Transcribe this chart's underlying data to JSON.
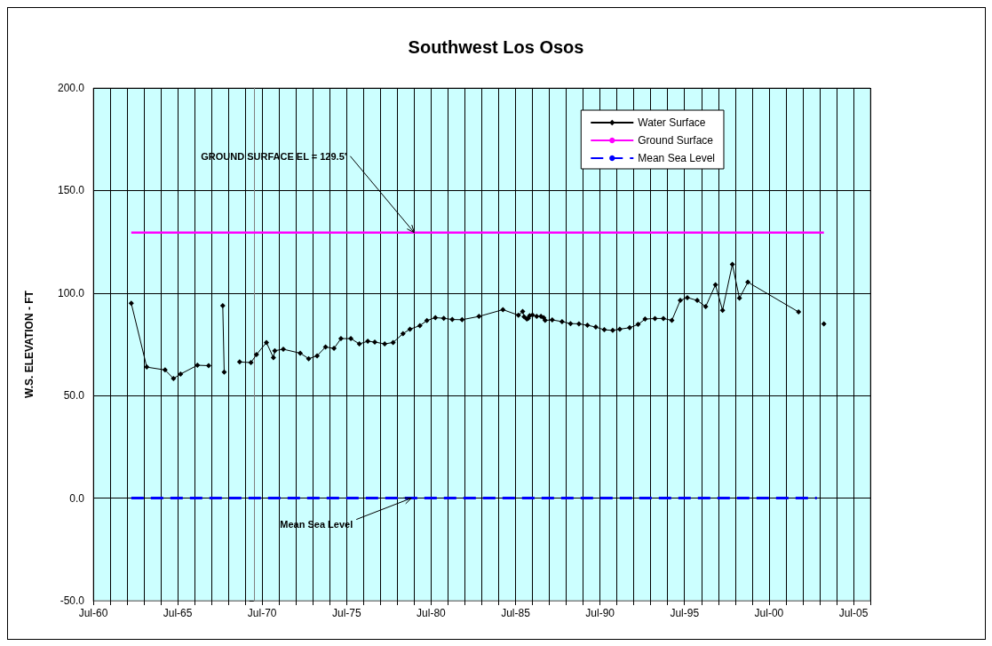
{
  "chart_data": {
    "type": "line",
    "title": "Southwest Los Osos",
    "ylabel": "W.S. ELEVATION - FT",
    "xlim": [
      "1960-07",
      "2006-07"
    ],
    "ylim": [
      -50,
      200
    ],
    "xticks": [
      {
        "value": "1960-07",
        "label": "Jul-60"
      },
      {
        "value": "1961-07",
        "label": null
      },
      {
        "value": "1962-07",
        "label": null
      },
      {
        "value": "1963-07",
        "label": null
      },
      {
        "value": "1964-07",
        "label": null
      },
      {
        "value": "1965-07",
        "label": "Jul-65"
      },
      {
        "value": "1966-07",
        "label": null
      },
      {
        "value": "1967-07",
        "label": null
      },
      {
        "value": "1968-07",
        "label": null
      },
      {
        "value": "1969-07",
        "label": null
      },
      {
        "value": "1970-07",
        "label": "Jul-70"
      },
      {
        "value": "1971-07",
        "label": null
      },
      {
        "value": "1972-07",
        "label": null
      },
      {
        "value": "1973-07",
        "label": null
      },
      {
        "value": "1974-07",
        "label": null
      },
      {
        "value": "1975-07",
        "label": "Jul-75"
      },
      {
        "value": "1976-07",
        "label": null
      },
      {
        "value": "1977-07",
        "label": null
      },
      {
        "value": "1978-07",
        "label": null
      },
      {
        "value": "1979-07",
        "label": null
      },
      {
        "value": "1980-07",
        "label": "Jul-80"
      },
      {
        "value": "1981-07",
        "label": null
      },
      {
        "value": "1982-07",
        "label": null
      },
      {
        "value": "1983-07",
        "label": null
      },
      {
        "value": "1984-07",
        "label": null
      },
      {
        "value": "1985-07",
        "label": "Jul-85"
      },
      {
        "value": "1986-07",
        "label": null
      },
      {
        "value": "1987-07",
        "label": null
      },
      {
        "value": "1988-07",
        "label": null
      },
      {
        "value": "1989-07",
        "label": null
      },
      {
        "value": "1990-07",
        "label": "Jul-90"
      },
      {
        "value": "1991-07",
        "label": null
      },
      {
        "value": "1992-07",
        "label": null
      },
      {
        "value": "1993-07",
        "label": null
      },
      {
        "value": "1994-07",
        "label": null
      },
      {
        "value": "1995-07",
        "label": "Jul-95"
      },
      {
        "value": "1996-07",
        "label": null
      },
      {
        "value": "1997-07",
        "label": null
      },
      {
        "value": "1998-07",
        "label": null
      },
      {
        "value": "1999-07",
        "label": null
      },
      {
        "value": "2000-07",
        "label": "Jul-00"
      },
      {
        "value": "2001-07",
        "label": null
      },
      {
        "value": "2002-07",
        "label": null
      },
      {
        "value": "2003-07",
        "label": null
      },
      {
        "value": "2004-07",
        "label": null
      },
      {
        "value": "2005-07",
        "label": "Jul-05"
      },
      {
        "value": "2006-07",
        "label": null
      }
    ],
    "yticks": [
      {
        "value": -50,
        "label": "-50.0"
      },
      {
        "value": 0,
        "label": "0.0"
      },
      {
        "value": 50,
        "label": "50.0"
      },
      {
        "value": 100,
        "label": "100.0"
      },
      {
        "value": 150,
        "label": "150.0"
      },
      {
        "value": 200,
        "label": "200.0"
      }
    ],
    "grid": true,
    "legend": "top right",
    "series": [
      {
        "name": "Water Surface",
        "color": "#000000",
        "marker": "diamond",
        "line_style": "solid",
        "x": [
          "1962-10",
          "1963-09",
          "1964-10",
          "1965-04",
          "1965-09",
          "1966-09",
          "1967-05",
          "1967-10",
          "1968-03",
          "1968-04",
          "1968-09",
          "1969-03",
          "1969-11",
          "1970-03",
          "1970-10",
          "1971-03",
          "1971-04",
          "1971-10",
          "1972-10",
          "1973-04",
          "1973-10",
          "1974-04",
          "1974-10",
          "1975-03",
          "1975-10",
          "1976-04",
          "1976-10",
          "1977-03",
          "1977-10",
          "1978-04",
          "1978-11",
          "1979-04",
          "1979-11",
          "1980-04",
          "1980-10",
          "1981-04",
          "1981-10",
          "1982-05",
          "1983-05",
          "1984-10",
          "1985-09",
          "1985-12",
          "1986-01",
          "1986-03",
          "1986-04",
          "1986-05",
          "1986-07",
          "1986-10",
          "1987-01",
          "1987-03",
          "1987-04",
          "1987-09",
          "1988-04",
          "1988-10",
          "1989-04",
          "1989-10",
          "1990-04",
          "1990-10",
          "1991-04",
          "1991-09",
          "1992-04",
          "1992-10",
          "1993-03",
          "1993-10",
          "1994-04",
          "1994-10",
          "1995-04",
          "1995-09",
          "1996-04",
          "1996-10",
          "1997-05",
          "1997-10",
          "1998-05",
          "1998-10",
          "1999-04",
          "2002-04",
          "2003-01",
          "2003-10"
        ],
        "values": [
          95,
          63.9,
          62.5,
          58.3,
          60.5,
          64.8,
          64.6,
          null,
          93.9,
          61.5,
          null,
          66.4,
          66.1,
          70,
          75.9,
          68.5,
          71.9,
          72.6,
          70.7,
          68,
          69.4,
          73.7,
          73,
          77.8,
          77.8,
          75.2,
          76.5,
          76.1,
          75.2,
          75.9,
          80.2,
          82.4,
          84.1,
          86.6,
          88,
          87.7,
          87.1,
          87,
          88.6,
          91.9,
          89.2,
          91,
          88.4,
          87.4,
          87.7,
          89,
          89.3,
          88.7,
          88.7,
          88,
          86.7,
          86.9,
          86.1,
          85.1,
          85,
          84.3,
          83.4,
          82.1,
          81.8,
          82.4,
          83.1,
          84.7,
          87.3,
          87.6,
          87.6,
          86.7,
          96.4,
          97.8,
          96.4,
          93.4,
          104,
          91.6,
          114,
          97.5,
          105.3,
          90.8,
          null,
          85
        ]
      },
      {
        "name": "Ground Surface",
        "color": "#ff00ff",
        "marker": "none",
        "line_style": "solid",
        "x": [
          "1962-10",
          "2003-10"
        ],
        "values": [
          129.5,
          129.5
        ]
      },
      {
        "name": "Mean Sea Level",
        "color": "#0000ff",
        "marker": "none",
        "line_style": "dashed",
        "x": [
          "1962-10",
          "2003-05"
        ],
        "values": [
          0,
          0
        ]
      }
    ],
    "annotations": [
      {
        "text": "GROUND SURFACE EL = 129.5'",
        "x": "1979-07",
        "y": 129.5
      },
      {
        "text": "Mean Sea Level",
        "x": "1979-05",
        "y": 0
      }
    ]
  }
}
